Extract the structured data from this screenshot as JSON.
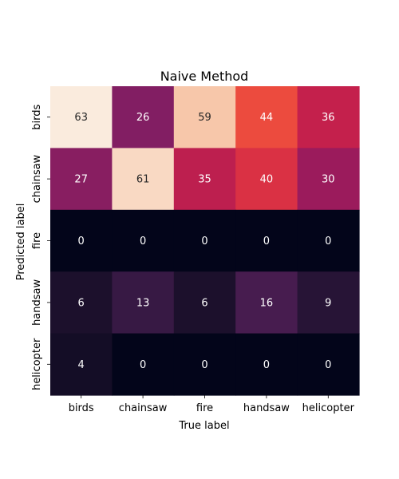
{
  "chart_data": {
    "type": "heatmap",
    "title": "Naive Method",
    "xlabel": "True label",
    "ylabel": "Predicted label",
    "x_categories": [
      "birds",
      "chainsaw",
      "fire",
      "handsaw",
      "helicopter"
    ],
    "y_categories": [
      "birds",
      "chainsaw",
      "fire",
      "handsaw",
      "helicopter"
    ],
    "values": [
      [
        63,
        26,
        59,
        44,
        36
      ],
      [
        27,
        61,
        35,
        40,
        30
      ],
      [
        0,
        0,
        0,
        0,
        0
      ],
      [
        6,
        13,
        6,
        16,
        9
      ],
      [
        4,
        0,
        0,
        0,
        0
      ]
    ],
    "colormap": "rocket",
    "value_range": [
      0,
      63
    ],
    "colorbar": false,
    "grid": false
  }
}
